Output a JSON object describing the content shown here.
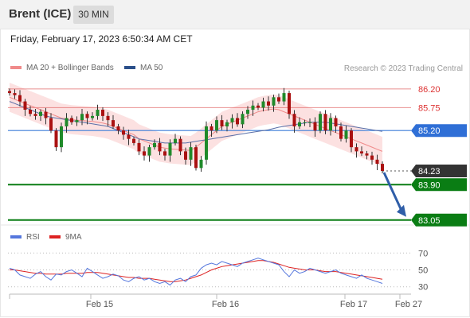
{
  "header": {
    "instrument": "Brent (ICE)",
    "interval": "30 MIN"
  },
  "timestamp": "Friday, February 17, 2023 6:50:34 AM CET",
  "credit": "Research © 2023 Trading Central",
  "legend": {
    "ma20": {
      "label": "MA 20 + Bollinger Bands",
      "color": "#f08a8a"
    },
    "ma50": {
      "label": "MA 50",
      "color": "#2b4f8a"
    },
    "rsi": {
      "label": "RSI",
      "color": "#5577dd"
    },
    "ma9": {
      "label": "9MA",
      "color": "#dd2222"
    }
  },
  "chart_data": [
    {
      "type": "line",
      "ylim": [
        82.95,
        86.35
      ],
      "x_ticks": [
        "Feb 15",
        "Feb 16",
        "Feb 17",
        "Feb 27"
      ],
      "levels": [
        {
          "value": 86.2,
          "label": "86.20",
          "kind": "resistance",
          "color": "#e06060"
        },
        {
          "value": 85.75,
          "label": "85.75",
          "kind": "resistance",
          "color": "#e06060"
        },
        {
          "value": 85.2,
          "label": "85.20",
          "kind": "pivot",
          "color": "#3b7dd8"
        },
        {
          "value": 84.23,
          "label": "84.23",
          "kind": "last",
          "color": "#333333"
        },
        {
          "value": 83.9,
          "label": "83.90",
          "kind": "support",
          "color": "#0a7d14"
        },
        {
          "value": 83.05,
          "label": "83.05",
          "kind": "support",
          "color": "#0a7d14"
        }
      ],
      "price": [
        86.1,
        86.05,
        85.9,
        85.7,
        85.6,
        85.55,
        85.65,
        85.5,
        85.2,
        84.8,
        85.3,
        85.5,
        85.4,
        85.45,
        85.6,
        85.5,
        85.55,
        85.7,
        85.55,
        85.45,
        85.3,
        85.2,
        85.1,
        85.0,
        84.9,
        84.7,
        84.6,
        84.8,
        84.9,
        84.7,
        84.6,
        84.9,
        85.0,
        84.7,
        84.5,
        84.8,
        84.3,
        84.5,
        85.3,
        85.2,
        85.45,
        85.3,
        85.4,
        85.5,
        85.35,
        85.6,
        85.7,
        85.8,
        85.75,
        85.9,
        85.8,
        86.0,
        85.9,
        86.1,
        85.6,
        85.3,
        85.4,
        85.4,
        85.4,
        85.2,
        85.6,
        85.2,
        85.5,
        85.3,
        85.0,
        85.2,
        84.8,
        84.7,
        84.65,
        84.6,
        84.5,
        84.4,
        84.23
      ],
      "ma20": [
        86.0,
        85.95,
        85.9,
        85.85,
        85.8,
        85.75,
        85.7,
        85.65,
        85.6,
        85.55,
        85.5,
        85.48,
        85.46,
        85.45,
        85.44,
        85.43,
        85.42,
        85.4,
        85.38,
        85.35,
        85.3,
        85.25,
        85.2,
        85.15,
        85.1,
        85.0,
        84.95,
        84.9,
        84.85,
        84.8,
        84.78,
        84.76,
        84.75,
        84.74,
        84.73,
        84.72,
        84.8,
        84.9,
        85.0,
        85.1,
        85.2,
        85.3,
        85.35,
        85.4,
        85.45,
        85.5,
        85.55,
        85.6,
        85.65,
        85.68,
        85.7,
        85.72,
        85.7,
        85.65,
        85.6,
        85.55,
        85.5,
        85.45,
        85.4,
        85.35,
        85.3,
        85.25,
        85.2,
        85.15,
        85.1,
        85.05,
        85.0,
        84.95,
        84.9,
        84.85,
        84.8,
        84.75,
        84.7
      ],
      "ma50": [
        85.9,
        85.85,
        85.8,
        85.75,
        85.7,
        85.65,
        85.6,
        85.55,
        85.52,
        85.5,
        85.48,
        85.46,
        85.44,
        85.42,
        85.4,
        85.38,
        85.36,
        85.34,
        85.32,
        85.3,
        85.25,
        85.2,
        85.15,
        85.1,
        85.05,
        85.0,
        84.98,
        84.96,
        84.94,
        84.92,
        84.9,
        84.9,
        84.9,
        84.9,
        84.9,
        84.92,
        84.94,
        84.96,
        84.98,
        85.0,
        85.02,
        85.04,
        85.06,
        85.08,
        85.1,
        85.12,
        85.14,
        85.16,
        85.18,
        85.2,
        85.22,
        85.25,
        85.28,
        85.3,
        85.32,
        85.34,
        85.36,
        85.38,
        85.4,
        85.4,
        85.4,
        85.4,
        85.38,
        85.36,
        85.34,
        85.32,
        85.3,
        85.28,
        85.26,
        85.24,
        85.22,
        85.2,
        85.18
      ],
      "band_width": 0.35,
      "forecast": {
        "from": 84.23,
        "to": 83.05
      }
    },
    {
      "type": "line",
      "ylim": [
        25,
        75
      ],
      "y_ticks": [
        "70",
        "50",
        "30"
      ],
      "y_tick_values": [
        70,
        50,
        30
      ],
      "rsi": [
        52,
        50,
        44,
        42,
        40,
        45,
        48,
        42,
        38,
        45,
        44,
        48,
        50,
        46,
        42,
        52,
        48,
        44,
        40,
        42,
        45,
        43,
        38,
        36,
        40,
        42,
        38,
        40,
        36,
        34,
        36,
        32,
        38,
        40,
        36,
        42,
        44,
        52,
        56,
        58,
        56,
        60,
        58,
        56,
        54,
        58,
        60,
        62,
        64,
        62,
        60,
        58,
        56,
        48,
        42,
        50,
        46,
        48,
        52,
        50,
        48,
        46,
        48,
        50,
        46,
        44,
        42,
        40,
        44,
        40,
        38,
        36,
        34
      ],
      "ma9": [
        50,
        50,
        49,
        48,
        47,
        46,
        46,
        45,
        45,
        45,
        45,
        46,
        46,
        46,
        46,
        47,
        47,
        47,
        46,
        45,
        44,
        43,
        42,
        41,
        41,
        40,
        40,
        40,
        39,
        38,
        37,
        36,
        36,
        37,
        38,
        40,
        42,
        44,
        47,
        50,
        52,
        54,
        55,
        56,
        57,
        58,
        59,
        60,
        61,
        61,
        60,
        59,
        57,
        55,
        53,
        52,
        51,
        50,
        50,
        50,
        49,
        48,
        48,
        48,
        47,
        46,
        45,
        44,
        43,
        42,
        41,
        40,
        39
      ]
    }
  ]
}
